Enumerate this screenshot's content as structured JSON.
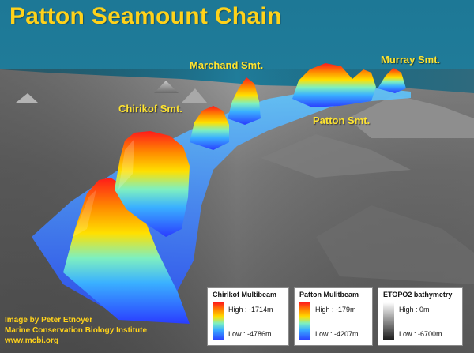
{
  "title": "Patton Seamount Chain",
  "labels": {
    "marchand": "Marchand Smt.",
    "murray": "Murray Smt.",
    "chirikof": "Chirikof Smt.",
    "patton": "Patton Smt."
  },
  "credits": {
    "line1": "Image by Peter Etnoyer",
    "line2": "Marine Conservation Biology Institute",
    "line3": "www.mcbi.org"
  },
  "legends": [
    {
      "title": "Chirikof Multibeam",
      "high": "High : -1714m",
      "low": "Low : -4786m"
    },
    {
      "title": "Patton Mulitbeam",
      "high": "High : -179m",
      "low": "Low : -4207m"
    },
    {
      "title": "ETOPO2 bathymetry",
      "high": "High : 0m",
      "low": "Low : -6700m"
    }
  ],
  "colors": {
    "sky": "#1f7a9b",
    "title": "#ffd21a",
    "label": "#ffe430",
    "seafloor": "#8c8c8c"
  }
}
